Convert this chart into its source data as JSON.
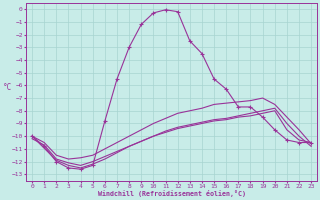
{
  "xlabel": "Windchill (Refroidissement éolien,°C)",
  "ylabel": "°C",
  "bg_color": "#c8ece8",
  "grid_color": "#a8d4d0",
  "line_color": "#993399",
  "xlim": [
    -0.5,
    23.5
  ],
  "ylim": [
    -13.5,
    0.5
  ],
  "line1_x": [
    0,
    1,
    2,
    3,
    4,
    5,
    6,
    7,
    8,
    9,
    10,
    11,
    12,
    13,
    14,
    15,
    16,
    17,
    18,
    19,
    20,
    21,
    22,
    23
  ],
  "line1_y": [
    -10.0,
    -10.8,
    -12.0,
    -12.5,
    -12.6,
    -12.3,
    -8.8,
    -5.5,
    -3.0,
    -1.2,
    -0.3,
    -0.05,
    -0.2,
    -2.5,
    -3.5,
    -5.5,
    -6.3,
    -7.7,
    -7.7,
    -8.5,
    -9.5,
    -10.3,
    -10.5,
    -10.5
  ],
  "line2_x": [
    0,
    1,
    2,
    3,
    4,
    5,
    6,
    7,
    8,
    9,
    10,
    11,
    12,
    13,
    14,
    15,
    16,
    17,
    18,
    19,
    20,
    21,
    22,
    23
  ],
  "line2_y": [
    -10.0,
    -10.5,
    -11.5,
    -11.8,
    -11.7,
    -11.5,
    -11.0,
    -10.5,
    -10.0,
    -9.5,
    -9.0,
    -8.6,
    -8.2,
    -8.0,
    -7.8,
    -7.5,
    -7.4,
    -7.3,
    -7.2,
    -7.0,
    -7.5,
    -8.5,
    -9.5,
    -10.6
  ],
  "line3_x": [
    0,
    1,
    2,
    3,
    4,
    5,
    6,
    7,
    8,
    9,
    10,
    11,
    12,
    13,
    14,
    15,
    16,
    17,
    18,
    19,
    20,
    21,
    22,
    23
  ],
  "line3_y": [
    -10.2,
    -10.7,
    -11.8,
    -12.1,
    -12.3,
    -12.0,
    -11.6,
    -11.2,
    -10.8,
    -10.4,
    -10.0,
    -9.7,
    -9.4,
    -9.2,
    -9.0,
    -8.8,
    -8.7,
    -8.5,
    -8.4,
    -8.2,
    -8.0,
    -9.5,
    -10.3,
    -10.5
  ],
  "line4_x": [
    0,
    2,
    3,
    4,
    5,
    6,
    7,
    8,
    9,
    10,
    11,
    12,
    13,
    14,
    15,
    16,
    17,
    18,
    19,
    20,
    21,
    22,
    23
  ],
  "line4_y": [
    -10.0,
    -11.9,
    -12.3,
    -12.5,
    -12.2,
    -11.8,
    -11.3,
    -10.8,
    -10.4,
    -10.0,
    -9.6,
    -9.3,
    -9.1,
    -8.9,
    -8.7,
    -8.6,
    -8.4,
    -8.2,
    -8.0,
    -7.8,
    -9.0,
    -10.0,
    -10.8
  ],
  "yticks": [
    0,
    -1,
    -2,
    -3,
    -4,
    -5,
    -6,
    -7,
    -8,
    -9,
    -10,
    -11,
    -12,
    -13
  ],
  "xticks": [
    0,
    1,
    2,
    3,
    4,
    5,
    6,
    7,
    8,
    9,
    10,
    11,
    12,
    13,
    14,
    15,
    16,
    17,
    18,
    19,
    20,
    21,
    22,
    23
  ]
}
